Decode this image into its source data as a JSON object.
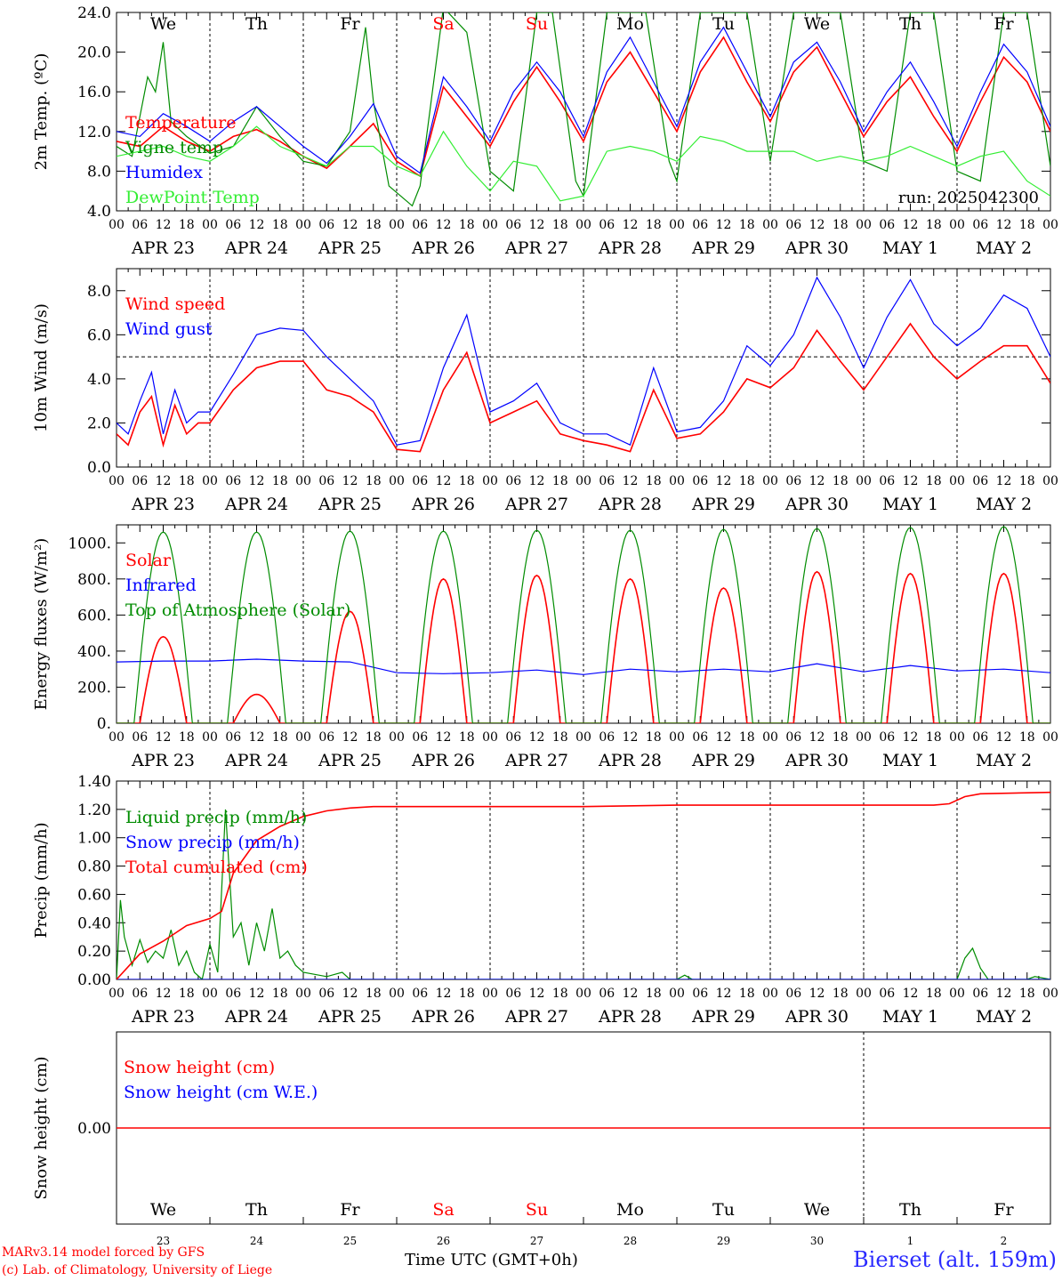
{
  "run_label": "run: 2025042300",
  "station": "Bierset (alt. 159m)",
  "credits": {
    "line1": "MARv3.14 model forced by GFS",
    "line2": "(c) Lab. of Climatology, University of Liege"
  },
  "time_axis_label": "Time UTC (GMT+0h)",
  "days": [
    {
      "dow": "We",
      "date": "APR 23",
      "daynum": "23",
      "weekend": false
    },
    {
      "dow": "Th",
      "date": "APR 24",
      "daynum": "24",
      "weekend": false
    },
    {
      "dow": "Fr",
      "date": "APR 25",
      "daynum": "25",
      "weekend": false
    },
    {
      "dow": "Sa",
      "date": "APR 26",
      "daynum": "26",
      "weekend": true
    },
    {
      "dow": "Su",
      "date": "APR 27",
      "daynum": "27",
      "weekend": true
    },
    {
      "dow": "Mo",
      "date": "APR 28",
      "daynum": "28",
      "weekend": false
    },
    {
      "dow": "Tu",
      "date": "APR 29",
      "daynum": "29",
      "weekend": false
    },
    {
      "dow": "We",
      "date": "APR 30",
      "daynum": "30",
      "weekend": false
    },
    {
      "dow": "Th",
      "date": "MAY  1",
      "daynum": "1",
      "weekend": false
    },
    {
      "dow": "Fr",
      "date": "MAY  2",
      "daynum": "2",
      "weekend": false
    }
  ],
  "hour_labels": [
    "00",
    "06",
    "12",
    "18"
  ],
  "colors": {
    "red": "#ff0000",
    "blue": "#0000ff",
    "green": "#008c00",
    "lightgreen": "#33ee33",
    "weekend": "#ff0000"
  },
  "chart_data": [
    {
      "id": "temperature",
      "type": "line",
      "ylabel": "2m Temp. (ºC)",
      "ylim": [
        4,
        24
      ],
      "yticks": [
        "4.0",
        "8.0",
        "12.0",
        "16.0",
        "20.0",
        "24.0"
      ],
      "ytick_values": [
        4,
        8,
        12,
        16,
        20,
        24
      ],
      "x_unit": "hours since APR 23 00 UTC",
      "series": [
        {
          "name": "Temperature",
          "color": "red",
          "x": [
            0,
            6,
            12,
            18,
            24,
            30,
            36,
            42,
            48,
            54,
            60,
            66,
            72,
            78,
            84,
            90,
            96,
            102,
            108,
            114,
            120,
            126,
            132,
            138,
            144,
            150,
            156,
            162,
            168,
            174,
            180,
            186,
            192,
            198,
            204,
            210,
            216,
            222,
            228,
            234,
            240
          ],
          "values": [
            11.0,
            10.5,
            12.5,
            11.0,
            10.0,
            11.5,
            12.2,
            11.0,
            9.5,
            8.3,
            10.5,
            12.8,
            9.0,
            7.5,
            16.5,
            13.5,
            10.5,
            15.0,
            18.5,
            15.0,
            11.0,
            17.0,
            20.0,
            16.0,
            12.0,
            18.0,
            21.5,
            17.0,
            13.0,
            18.0,
            20.5,
            16.0,
            11.5,
            15.0,
            17.5,
            13.5,
            10.0,
            15.0,
            19.5,
            17.0,
            12.0
          ]
        },
        {
          "name": "Vigne temp",
          "color": "green",
          "x": [
            0,
            4,
            8,
            10,
            12,
            14,
            18,
            24,
            30,
            36,
            42,
            48,
            54,
            60,
            64,
            66,
            70,
            76,
            78,
            84,
            90,
            96,
            102,
            108,
            112,
            118,
            120,
            126,
            132,
            136,
            142,
            144,
            150,
            156,
            162,
            168,
            174,
            180,
            186,
            192,
            198,
            204,
            210,
            216,
            222,
            228,
            234,
            240
          ],
          "values": [
            10.5,
            9.5,
            17.5,
            16.0,
            21.0,
            13.0,
            11.5,
            9.8,
            10.5,
            14.5,
            11.5,
            9.0,
            8.5,
            12.0,
            22.5,
            15.0,
            6.5,
            4.5,
            6.5,
            24.5,
            22.0,
            8.0,
            6.0,
            24.0,
            24.0,
            7.0,
            5.5,
            24.0,
            24.0,
            24.0,
            9.0,
            7.0,
            24.0,
            24.0,
            24.0,
            9.0,
            24.0,
            24.0,
            24.0,
            9.0,
            8.0,
            24.0,
            24.0,
            8.0,
            7.0,
            24.0,
            24.0,
            8.5
          ]
        },
        {
          "name": "Humidex",
          "color": "blue",
          "x": [
            0,
            6,
            12,
            18,
            24,
            30,
            36,
            42,
            48,
            54,
            60,
            66,
            72,
            78,
            84,
            90,
            96,
            102,
            108,
            114,
            120,
            126,
            132,
            138,
            144,
            150,
            156,
            162,
            168,
            174,
            180,
            186,
            192,
            198,
            204,
            210,
            216,
            222,
            228,
            234,
            240
          ],
          "values": [
            12.0,
            11.5,
            13.8,
            12.5,
            11.0,
            13.0,
            14.5,
            12.5,
            10.5,
            8.8,
            11.5,
            14.8,
            9.5,
            7.8,
            17.5,
            14.5,
            11.0,
            16.0,
            19.0,
            16.0,
            11.5,
            18.0,
            21.5,
            17.0,
            12.5,
            19.0,
            22.5,
            18.0,
            13.5,
            19.0,
            21.0,
            17.0,
            12.0,
            16.0,
            19.0,
            15.0,
            10.5,
            16.0,
            20.8,
            18.0,
            12.5
          ]
        },
        {
          "name": "DewPoint Temp",
          "color": "lightgreen",
          "x": [
            0,
            6,
            12,
            18,
            24,
            30,
            36,
            42,
            48,
            54,
            60,
            66,
            72,
            78,
            84,
            90,
            96,
            102,
            108,
            114,
            120,
            126,
            132,
            138,
            144,
            150,
            156,
            162,
            168,
            174,
            180,
            186,
            192,
            198,
            204,
            210,
            216,
            222,
            228,
            234,
            240
          ],
          "values": [
            9.5,
            10.0,
            10.5,
            9.5,
            9.0,
            10.5,
            12.5,
            10.5,
            9.5,
            8.5,
            10.5,
            10.5,
            8.5,
            7.5,
            12.0,
            8.5,
            6.0,
            9.0,
            8.5,
            5.0,
            5.5,
            10.0,
            10.5,
            10.0,
            9.0,
            11.5,
            11.0,
            10.0,
            10.0,
            10.0,
            9.0,
            9.5,
            9.0,
            9.5,
            10.5,
            9.5,
            8.5,
            9.5,
            10.0,
            7.0,
            5.5
          ]
        }
      ]
    },
    {
      "id": "wind",
      "type": "line",
      "ylabel": "10m Wind (m/s)",
      "ylim": [
        0,
        9
      ],
      "yticks": [
        "0.0",
        "2.0",
        "4.0",
        "6.0",
        "8.0"
      ],
      "ytick_values": [
        0,
        2,
        4,
        6,
        8
      ],
      "reference_line": 5,
      "x_unit": "hours since APR 23 00 UTC",
      "series": [
        {
          "name": "Wind speed",
          "color": "red",
          "x": [
            0,
            3,
            6,
            9,
            12,
            15,
            18,
            21,
            24,
            30,
            36,
            42,
            48,
            54,
            60,
            66,
            72,
            78,
            84,
            90,
            96,
            102,
            108,
            114,
            120,
            126,
            132,
            138,
            144,
            150,
            156,
            162,
            168,
            174,
            180,
            186,
            192,
            198,
            204,
            210,
            216,
            222,
            228,
            234,
            240
          ],
          "values": [
            1.5,
            1.0,
            2.5,
            3.2,
            1.0,
            2.8,
            1.5,
            2.0,
            2.0,
            3.5,
            4.5,
            4.8,
            4.8,
            3.5,
            3.2,
            2.5,
            0.8,
            0.7,
            3.5,
            5.2,
            2.0,
            2.5,
            3.0,
            1.5,
            1.2,
            1.0,
            0.7,
            3.5,
            1.3,
            1.5,
            2.5,
            4.0,
            3.6,
            4.5,
            6.2,
            4.8,
            3.5,
            5.0,
            6.5,
            5.0,
            4.0,
            4.8,
            5.5,
            5.5,
            3.8
          ]
        },
        {
          "name": "Wind gust",
          "color": "blue",
          "x": [
            0,
            3,
            6,
            9,
            12,
            15,
            18,
            21,
            24,
            30,
            36,
            42,
            48,
            54,
            60,
            66,
            72,
            78,
            84,
            90,
            96,
            102,
            108,
            114,
            120,
            126,
            132,
            138,
            144,
            150,
            156,
            162,
            168,
            174,
            180,
            186,
            192,
            198,
            204,
            210,
            216,
            222,
            228,
            234,
            240
          ],
          "values": [
            2.0,
            1.5,
            3.0,
            4.3,
            1.5,
            3.5,
            2.0,
            2.5,
            2.5,
            4.2,
            6.0,
            6.3,
            6.2,
            5.0,
            4.0,
            3.0,
            1.0,
            1.2,
            4.5,
            6.9,
            2.5,
            3.0,
            3.8,
            2.0,
            1.5,
            1.5,
            1.0,
            4.5,
            1.6,
            1.8,
            3.0,
            5.5,
            4.6,
            6.0,
            8.6,
            6.8,
            4.5,
            6.8,
            8.5,
            6.5,
            5.5,
            6.3,
            7.8,
            7.2,
            5.0
          ]
        }
      ]
    },
    {
      "id": "energy",
      "type": "line",
      "ylabel": "Energy fluxes (W/m²)",
      "ylim": [
        0,
        1100
      ],
      "yticks": [
        "0.",
        "200.",
        "400.",
        "600.",
        "800.",
        "1000."
      ],
      "ytick_values": [
        0,
        200,
        400,
        600,
        800,
        1000
      ],
      "x_unit": "hours since APR 23 00 UTC",
      "series": [
        {
          "name": "Solar",
          "color": "red",
          "peaks": [
            480,
            160,
            620,
            800,
            820,
            800,
            750,
            840,
            830,
            830
          ]
        },
        {
          "name": "Infrared",
          "color": "blue",
          "x": [
            0,
            12,
            24,
            36,
            48,
            60,
            72,
            84,
            96,
            108,
            120,
            132,
            144,
            156,
            168,
            180,
            192,
            204,
            216,
            228,
            240
          ],
          "values": [
            340,
            345,
            345,
            355,
            345,
            340,
            280,
            275,
            280,
            295,
            270,
            300,
            285,
            300,
            285,
            330,
            285,
            320,
            290,
            300,
            280
          ]
        },
        {
          "name": "Top of Atmosphere (Solar)",
          "color": "green",
          "peaks": [
            1060,
            1060,
            1065,
            1065,
            1070,
            1070,
            1075,
            1080,
            1085,
            1090
          ]
        }
      ]
    },
    {
      "id": "precip",
      "type": "line",
      "ylabel": "Precip (mm/h)",
      "ylim": [
        0,
        1.4
      ],
      "yticks": [
        "0.00",
        "0.20",
        "0.40",
        "0.60",
        "0.80",
        "1.00",
        "1.20",
        "1.40"
      ],
      "ytick_values": [
        0,
        0.2,
        0.4,
        0.6,
        0.8,
        1.0,
        1.2,
        1.4
      ],
      "x_unit": "hours since APR 23 00 UTC",
      "series": [
        {
          "name": "Liquid precip (mm/h)",
          "color": "green",
          "x": [
            0,
            1,
            2,
            4,
            6,
            8,
            10,
            12,
            14,
            16,
            18,
            20,
            22,
            24,
            26,
            28,
            30,
            32,
            34,
            36,
            38,
            40,
            42,
            44,
            46,
            48,
            54,
            58,
            60,
            64,
            144,
            146,
            148,
            216,
            218,
            220,
            222,
            224,
            234,
            236,
            240
          ],
          "values": [
            0.0,
            0.56,
            0.3,
            0.1,
            0.28,
            0.12,
            0.2,
            0.15,
            0.35,
            0.1,
            0.2,
            0.05,
            0.0,
            0.25,
            0.05,
            1.2,
            0.3,
            0.4,
            0.1,
            0.4,
            0.2,
            0.5,
            0.15,
            0.2,
            0.1,
            0.05,
            0.02,
            0.05,
            0.0,
            0.0,
            0.0,
            0.03,
            0.0,
            0.0,
            0.15,
            0.22,
            0.08,
            0.0,
            0.0,
            0.02,
            0.0
          ]
        },
        {
          "name": "Snow precip (mm/h)",
          "color": "blue",
          "x": [
            0,
            240
          ],
          "values": [
            0,
            0
          ]
        },
        {
          "name": "Total cumulated (cm)",
          "color": "red",
          "x": [
            0,
            6,
            12,
            18,
            24,
            27,
            30,
            36,
            42,
            48,
            54,
            60,
            66,
            72,
            120,
            144,
            210,
            214,
            218,
            222,
            240
          ],
          "values": [
            0.0,
            0.18,
            0.27,
            0.38,
            0.43,
            0.48,
            0.75,
            0.98,
            1.08,
            1.15,
            1.19,
            1.21,
            1.22,
            1.22,
            1.22,
            1.23,
            1.23,
            1.24,
            1.29,
            1.31,
            1.32
          ]
        }
      ]
    },
    {
      "id": "snow",
      "type": "line",
      "ylabel": "Snow height (cm)",
      "ylim": [
        -1,
        1
      ],
      "yticks": [
        "0.00"
      ],
      "ytick_values": [
        0
      ],
      "x_unit": "hours since APR 23 00 UTC",
      "series": [
        {
          "name": "Snow height (cm)",
          "color": "red",
          "x": [
            0,
            240
          ],
          "values": [
            0,
            0
          ]
        },
        {
          "name": "Snow height (cm W.E.)",
          "color": "blue",
          "x": [],
          "values": []
        }
      ]
    }
  ]
}
